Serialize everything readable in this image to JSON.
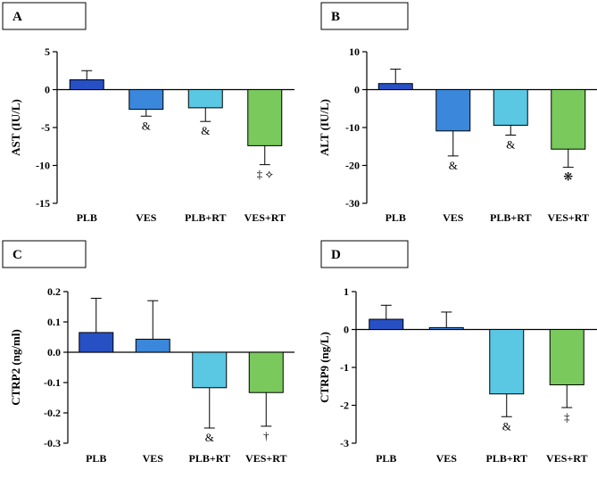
{
  "chart_data": [
    {
      "panel": "A",
      "type": "bar",
      "categories": [
        "PLB",
        "VES",
        "PLB+RT",
        "VES+RT"
      ],
      "values": [
        1.3,
        -2.6,
        -2.4,
        -7.4
      ],
      "errors": [
        1.2,
        0.9,
        1.8,
        2.5
      ],
      "annotations": [
        "",
        "&",
        "&",
        "‡ ⟡"
      ],
      "ylabel": "AST (IU/L)",
      "ylim": [
        -15,
        5
      ],
      "yticks": [
        5,
        0,
        -5,
        -10,
        -15
      ]
    },
    {
      "panel": "B",
      "type": "bar",
      "categories": [
        "PLB",
        "VES",
        "PLB+RT",
        "VES+RT"
      ],
      "values": [
        1.6,
        -10.9,
        -9.4,
        -15.7
      ],
      "errors": [
        3.8,
        6.6,
        2.6,
        4.8
      ],
      "annotations": [
        "",
        "&",
        "&",
        "❋"
      ],
      "ylabel": "ALT (IU/L)",
      "ylim": [
        -30,
        10
      ],
      "yticks": [
        10,
        0,
        -10,
        -20,
        -30
      ]
    },
    {
      "panel": "C",
      "type": "bar",
      "categories": [
        "PLB",
        "VES",
        "PLB+RT",
        "VES+RT"
      ],
      "values": [
        0.065,
        0.043,
        -0.117,
        -0.133
      ],
      "errors": [
        0.113,
        0.127,
        0.133,
        0.111
      ],
      "annotations": [
        "",
        "",
        "&",
        "†"
      ],
      "ylabel": "CTRP2 (ng/ml)",
      "ylim": [
        -0.3,
        0.2
      ],
      "yticks": [
        0.2,
        0.1,
        0.0,
        -0.1,
        -0.2,
        -0.3
      ]
    },
    {
      "panel": "D",
      "type": "bar",
      "categories": [
        "PLB",
        "VES",
        "PLB+RT",
        "VES+RT"
      ],
      "values": [
        0.27,
        0.05,
        -1.7,
        -1.46
      ],
      "errors": [
        0.37,
        0.41,
        0.6,
        0.6
      ],
      "annotations": [
        "",
        "",
        "&",
        "‡"
      ],
      "ylabel": "CTRP9 (ng/L)",
      "ylim": [
        -3,
        1
      ],
      "yticks": [
        1,
        0,
        -1,
        -2,
        -3
      ]
    }
  ],
  "colors": [
    "#2750c4",
    "#3a87dc",
    "#5ac7e3",
    "#79c95d"
  ],
  "tick_format": [
    [
      "5",
      "0",
      "-5",
      "-10",
      "-15"
    ],
    [
      "10",
      "0",
      "-10",
      "-20",
      "-30"
    ],
    [
      "0.2",
      "0.1",
      "0.0",
      "-0.1",
      "-0.2",
      "-0.3"
    ],
    [
      "1",
      "0",
      "-1",
      "-2",
      "-3"
    ]
  ]
}
